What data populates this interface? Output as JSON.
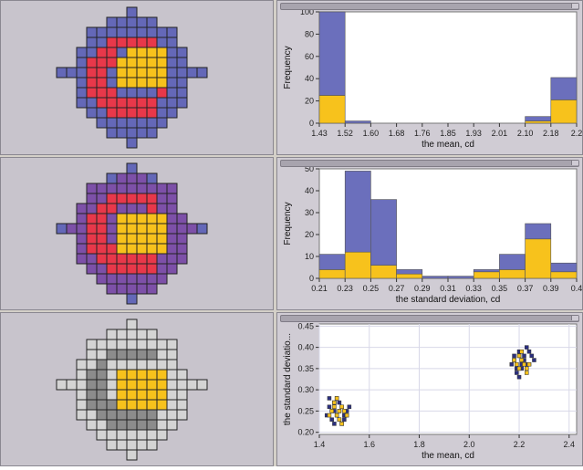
{
  "colors": {
    "blue": "#6b6fbc",
    "yellow": "#f7c21c",
    "red": "#e8384a",
    "purple_mid": "#7d50a8",
    "gray_light": "#d4d4d4",
    "gray_mid": "#9a9a9a",
    "gray_dark": "#7c7c7c",
    "panel_bg": "#c8c4cc"
  },
  "grids": [
    {
      "name": "field-map-mean",
      "colors": {
        "O": "#6468b8",
        "R": "#e8384a",
        "Y": "#f7c21c"
      },
      "rows": [
        ".......O.......",
        ".....OOOOO.....",
        "...OOOOOOOOO...",
        "...OORRRRROO...",
        "..OORROYYYYOO..",
        "..ORRRYYYYYOO..",
        "OOORROYYYYYOOOO",
        "..ORROYYYYYOO..",
        "..ORRROOOOROO..",
        "..OORRRRRROOO..",
        "...OORRRRROO...",
        "....OOOOOOO....",
        ".....OOOOO.....",
        ".......O......."
      ]
    },
    {
      "name": "field-map-sd",
      "colors": {
        "O": "#7d50a8",
        "R": "#e8384a",
        "Y": "#f7c21c",
        "B": "#6468b8"
      },
      "rows": [
        ".......B.......",
        ".....BOOOB.....",
        "...OOOOOOOOO...",
        "...OORRRRROO...",
        "..OORROOOROO...",
        "..ORROYYYYYOO..",
        "BOORROYYYYYOOOB",
        "..ORROYYYYYOO..",
        "..ORRRYYYYYOO..",
        "..OORRRRRROOO..",
        "...OORRRRROO...",
        "....OOOOOOO....",
        ".....OOOOO.....",
        ".......B......."
      ]
    },
    {
      "name": "field-map-cluster",
      "colors": {
        "L": "#d4d4d4",
        "M": "#8c8c8c",
        "Y": "#f7c21c"
      },
      "rows": [
        ".......L.......",
        ".....LLLLL.....",
        "...LLLLLLLLL...",
        "...LLMMMMMLL...",
        "..LLMLLLLLLL...",
        "..LMMLYYYYYLL..",
        "LLLMMLYYYYYLLLL",
        "..LMMLYYYYYLL..",
        "..LMMMYYYYYLL..",
        "..LLMMMMMMLLL..",
        "...LLMMMMMLL...",
        "....LLLLLLL....",
        ".....LLLLL.....",
        ".......L......."
      ]
    }
  ],
  "chart_data": [
    {
      "type": "bar",
      "title": "",
      "xlabel": "the mean, cd",
      "ylabel": "Frequency",
      "ylim": [
        0,
        100
      ],
      "yticks": [
        "0",
        "20",
        "40",
        "60",
        "80",
        "100"
      ],
      "xticks": [
        "1.43",
        "1.52",
        "1.60",
        "1.68",
        "1.76",
        "1.85",
        "1.93",
        "2.01",
        "2.10",
        "2.18",
        "2.2"
      ],
      "bins": 10,
      "stacked": true,
      "series": [
        {
          "values": [
            25,
            0,
            0,
            0,
            0,
            0,
            0,
            0,
            2,
            21
          ]
        },
        {
          "values": [
            75,
            2,
            0,
            0,
            0,
            0,
            0,
            0,
            4,
            20
          ]
        }
      ]
    },
    {
      "type": "bar",
      "title": "",
      "xlabel": "the standard deviation, cd",
      "ylabel": "Frequency",
      "ylim": [
        0,
        50
      ],
      "yticks": [
        "0",
        "10",
        "20",
        "30",
        "40",
        "50"
      ],
      "xticks": [
        "0.21",
        "0.23",
        "0.25",
        "0.27",
        "0.29",
        "0.31",
        "0.33",
        "0.35",
        "0.37",
        "0.39",
        "0.4"
      ],
      "bins": 10,
      "stacked": true,
      "series": [
        {
          "values": [
            4,
            12,
            6,
            2,
            0,
            0,
            3,
            4,
            18,
            3
          ]
        },
        {
          "values": [
            7,
            37,
            30,
            2,
            1,
            1,
            1,
            7,
            7,
            4
          ]
        }
      ]
    },
    {
      "type": "scatter",
      "title": "",
      "xlabel": "the mean, cd",
      "ylabel": "the standard deviatio...",
      "xlim": [
        1.4,
        2.43
      ],
      "ylim": [
        0.195,
        0.455
      ],
      "xticks": [
        "1.4",
        "1.6",
        "1.8",
        "2.0",
        "2.2",
        "2.4"
      ],
      "yticks": [
        "0.20",
        "0.25",
        "0.30",
        "0.35",
        "0.40",
        "0.45"
      ],
      "grid": true,
      "series": [
        {
          "name": "",
          "x": [
            1.44,
            1.46,
            1.48,
            1.5,
            1.45,
            1.47,
            1.49,
            1.51,
            1.43,
            1.46,
            1.48,
            1.5,
            1.45,
            1.47,
            1.52,
            1.44,
            1.49,
            1.46,
            1.48,
            1.51,
            2.18,
            2.2,
            2.22,
            2.24,
            2.19,
            2.21,
            2.23,
            2.25,
            2.17,
            2.2,
            2.22,
            2.19,
            2.21,
            2.23,
            2.24,
            2.18,
            2.26,
            2.2,
            2.22,
            2.21
          ],
          "y": [
            0.26,
            0.27,
            0.25,
            0.24,
            0.23,
            0.28,
            0.26,
            0.25,
            0.24,
            0.22,
            0.27,
            0.23,
            0.25,
            0.24,
            0.26,
            0.28,
            0.22,
            0.25,
            0.23,
            0.24,
            0.37,
            0.38,
            0.36,
            0.39,
            0.35,
            0.37,
            0.36,
            0.38,
            0.36,
            0.39,
            0.37,
            0.34,
            0.35,
            0.4,
            0.36,
            0.38,
            0.37,
            0.33,
            0.38,
            0.36
          ]
        },
        {
          "name": "",
          "x": [
            1.45,
            1.47,
            1.49,
            1.46,
            1.48,
            1.5,
            1.44,
            1.47,
            1.49,
            1.46,
            1.51,
            1.48,
            2.19,
            2.21,
            2.23,
            2.2,
            2.22,
            2.18,
            2.24,
            2.21,
            2.23,
            2.2
          ],
          "y": [
            0.25,
            0.24,
            0.26,
            0.27,
            0.23,
            0.25,
            0.24,
            0.28,
            0.22,
            0.26,
            0.24,
            0.25,
            0.36,
            0.37,
            0.35,
            0.38,
            0.36,
            0.37,
            0.36,
            0.39,
            0.34,
            0.35
          ]
        }
      ]
    }
  ]
}
